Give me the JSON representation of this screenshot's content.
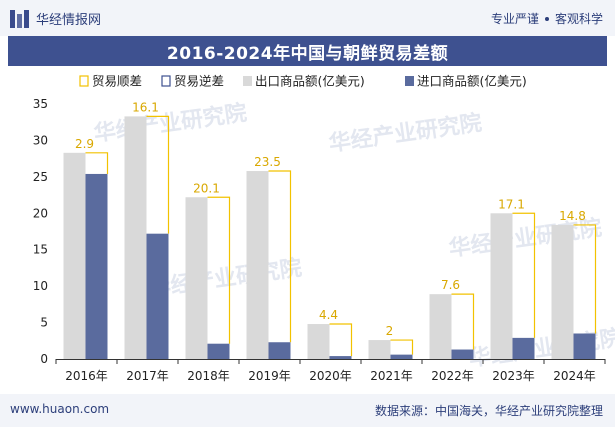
{
  "header": {
    "brand": "华经情报网",
    "slogan_left": "专业严谨",
    "slogan_right": "客观科学"
  },
  "footer": {
    "website": "www.huaon.com",
    "source": "数据来源：中国海关，华经产业研究院整理"
  },
  "watermark": "华经产业研究院",
  "colors": {
    "export": "#d9d9d9",
    "import": "#5a6b9e",
    "surplus": "#f2c200",
    "deficit": "#3e5190",
    "title_bg": "#3e5190"
  },
  "chart_data": {
    "type": "bar",
    "title": "2016-2024年中国与朝鲜贸易差额",
    "categories": [
      "2016年",
      "2017年",
      "2018年",
      "2019年",
      "2020年",
      "2021年",
      "2022年",
      "2023年",
      "2024年"
    ],
    "series": [
      {
        "name": "出口商品额(亿美元)",
        "values": [
          28.3,
          33.3,
          22.2,
          25.8,
          4.8,
          2.6,
          8.9,
          20.0,
          18.4
        ]
      },
      {
        "name": "进口商品额(亿美元)",
        "values": [
          25.4,
          17.2,
          2.1,
          2.3,
          0.4,
          0.6,
          1.3,
          2.9,
          3.5
        ]
      }
    ],
    "balance": {
      "surplus_name": "贸易顺差",
      "deficit_name": "贸易逆差",
      "values": [
        2.9,
        16.1,
        20.1,
        23.5,
        4.4,
        2,
        7.6,
        17.1,
        14.8
      ],
      "labels": [
        "2.9",
        "16.1",
        "20.1",
        "23.5",
        "4.4",
        "2",
        "7.6",
        "17.1",
        "14.8"
      ]
    },
    "yticks": [
      "0",
      "5",
      "10",
      "15",
      "20",
      "25",
      "30",
      "35"
    ],
    "ylim": [
      0,
      35
    ],
    "legend_position": "top",
    "grid": false
  }
}
